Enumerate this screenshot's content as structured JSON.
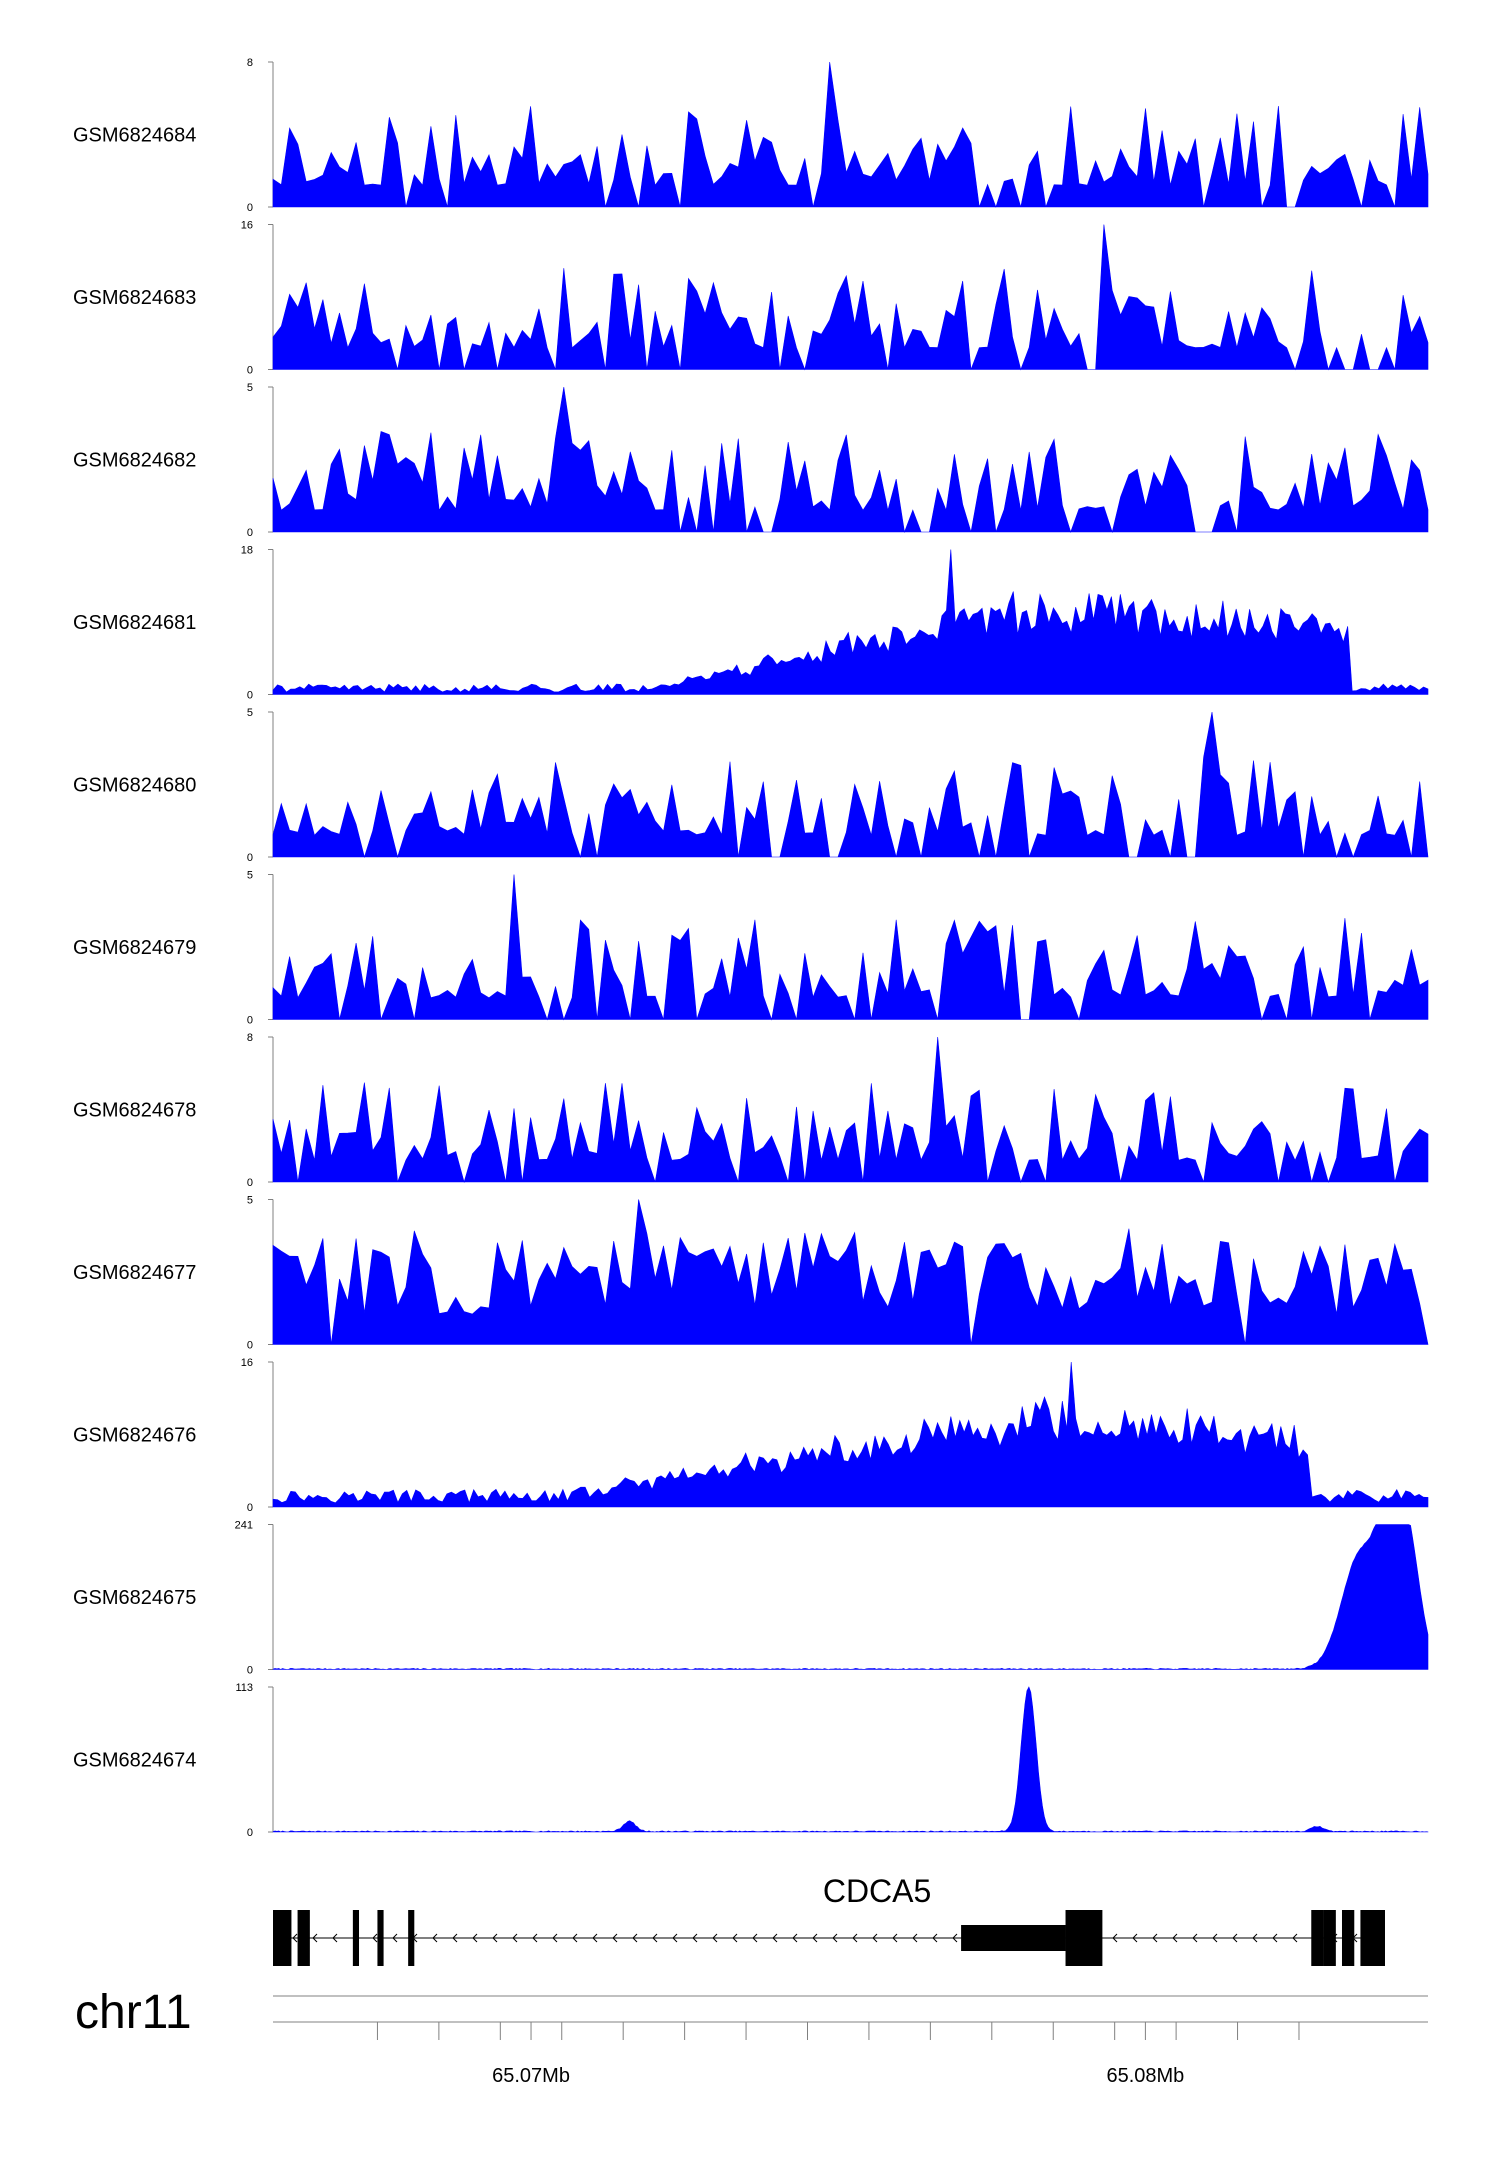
{
  "chart_data": {
    "type": "area",
    "x_unit": "Mb",
    "x_range": [
      65.0658,
      65.0846
    ],
    "tracks": [
      {
        "name": "GSM6824684",
        "ymax": 8,
        "ymin": 0,
        "color": "#0000FF",
        "peak_x": 65.0749,
        "peak_val": 8,
        "kind": "sparse",
        "seed": 11
      },
      {
        "name": "GSM6824683",
        "ymax": 16,
        "ymin": 0,
        "color": "#0000FF",
        "peak_x": 65.0793,
        "peak_val": 16,
        "kind": "sparse",
        "seed": 23
      },
      {
        "name": "GSM6824682",
        "ymax": 5,
        "ymin": 0,
        "color": "#0000FF",
        "peak_x": 65.0705,
        "peak_val": 5,
        "kind": "sparse",
        "seed": 37
      },
      {
        "name": "GSM6824681",
        "ymax": 18,
        "ymin": 0,
        "color": "#0000FF",
        "peak_x": 65.0768,
        "peak_val": 18,
        "kind": "broad",
        "seed": 41,
        "broad_start": 65.0719,
        "broad_center": 65.0782,
        "broad_end": 65.0833,
        "base": 1.0,
        "amp": 12
      },
      {
        "name": "GSM6824680",
        "ymax": 5,
        "ymin": 0,
        "color": "#0000FF",
        "peak_x": 65.0811,
        "peak_val": 5,
        "kind": "sparse",
        "seed": 53
      },
      {
        "name": "GSM6824679",
        "ymax": 5,
        "ymin": 0,
        "color": "#0000FF",
        "peak_x": 65.0697,
        "peak_val": 5,
        "kind": "sparse",
        "seed": 67
      },
      {
        "name": "GSM6824678",
        "ymax": 8,
        "ymin": 0,
        "color": "#0000FF",
        "peak_x": 65.0766,
        "peak_val": 8,
        "kind": "sparse",
        "seed": 71
      },
      {
        "name": "GSM6824677",
        "ymax": 5,
        "ymin": 0,
        "color": "#0000FF",
        "peak_x": 65.0718,
        "peak_val": 5,
        "kind": "dense",
        "seed": 83
      },
      {
        "name": "GSM6824676",
        "ymax": 16,
        "ymin": 0,
        "color": "#0000FF",
        "peak_x": 65.0788,
        "peak_val": 16,
        "kind": "broad",
        "seed": 97,
        "broad_start": 65.0705,
        "broad_center": 65.0782,
        "broad_end": 65.0827,
        "base": 1.5,
        "amp": 10
      },
      {
        "name": "GSM6824675",
        "ymax": 241,
        "ymin": 0,
        "color": "#0000FF",
        "peak_x": 65.084,
        "peak_val": 241,
        "kind": "peak",
        "peaks": [
          {
            "x": 65.0835,
            "h": 190,
            "w": 0.0003
          },
          {
            "x": 65.084,
            "h": 230,
            "w": 0.0002
          },
          {
            "x": 65.0843,
            "h": 170,
            "w": 0.0002
          }
        ]
      },
      {
        "name": "GSM6824674",
        "ymax": 113,
        "ymin": 0,
        "color": "#0000FF",
        "peak_x": 65.0781,
        "peak_val": 113,
        "kind": "peak",
        "peaks": [
          {
            "x": 65.0781,
            "h": 113,
            "w": 0.00012
          },
          {
            "x": 65.0716,
            "h": 8,
            "w": 0.0001
          },
          {
            "x": 65.0828,
            "h": 4,
            "w": 0.0001
          }
        ]
      }
    ],
    "gene": {
      "name": "CDCA5",
      "strand": "-",
      "tx_start": 65.0658,
      "tx_end": 65.0839,
      "exons": [
        {
          "start": 65.0658,
          "end": 65.066,
          "type": "utr"
        },
        {
          "start": 65.0658,
          "end": 65.0661,
          "type": "cds"
        },
        {
          "start": 65.0662,
          "end": 65.0664,
          "type": "cds"
        },
        {
          "start": 65.0671,
          "end": 65.0672,
          "type": "cds"
        },
        {
          "start": 65.0675,
          "end": 65.0676,
          "type": "cds"
        },
        {
          "start": 65.068,
          "end": 65.0681,
          "type": "cds"
        },
        {
          "start": 65.077,
          "end": 65.0787,
          "type": "utr"
        },
        {
          "start": 65.0787,
          "end": 65.0793,
          "type": "cds"
        },
        {
          "start": 65.0827,
          "end": 65.0829,
          "type": "cds"
        },
        {
          "start": 65.0829,
          "end": 65.0831,
          "type": "cds"
        },
        {
          "start": 65.0832,
          "end": 65.0834,
          "type": "cds"
        },
        {
          "start": 65.0835,
          "end": 65.0839,
          "type": "cds"
        }
      ]
    },
    "chromosome": "chr11",
    "axis_ticks": [
      65.0675,
      65.0685,
      65.0695,
      65.0705,
      65.0715,
      65.0725,
      65.0735,
      65.0745,
      65.0755,
      65.0765,
      65.0775,
      65.0785,
      65.0795,
      65.0805,
      65.0815,
      65.0825
    ],
    "axis_labels": [
      {
        "x": 65.07,
        "text": "65.07Mb"
      },
      {
        "x": 65.08,
        "text": "65.08Mb"
      }
    ]
  }
}
